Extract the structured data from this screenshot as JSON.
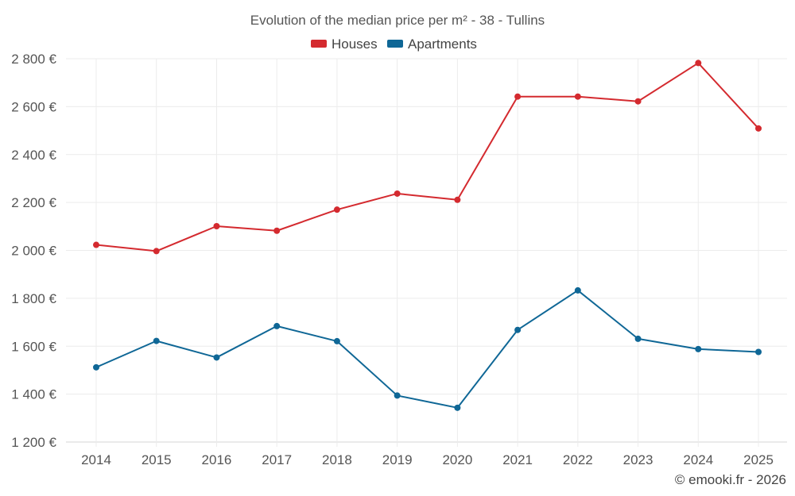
{
  "chart_data": {
    "type": "line",
    "title": "Evolution of the median price per m² - 38 - Tullins",
    "categories": [
      "2014",
      "2015",
      "2016",
      "2017",
      "2018",
      "2019",
      "2020",
      "2021",
      "2022",
      "2023",
      "2024",
      "2025"
    ],
    "series": [
      {
        "name": "Houses",
        "color": "#d42a2f",
        "values": [
          2023,
          1997,
          2101,
          2082,
          2170,
          2237,
          2211,
          2642,
          2642,
          2622,
          2782,
          2509
        ]
      },
      {
        "name": "Apartments",
        "color": "#0f6796",
        "values": [
          1512,
          1622,
          1553,
          1684,
          1621,
          1394,
          1343,
          1668,
          1833,
          1631,
          1588,
          1576
        ]
      }
    ],
    "yticks": [
      1200,
      1400,
      1600,
      1800,
      2000,
      2200,
      2400,
      2600,
      2800
    ],
    "ytick_labels": [
      "1 200 €",
      "1 400 €",
      "1 600 €",
      "1 800 €",
      "2 000 €",
      "2 200 €",
      "2 400 €",
      "2 600 €",
      "2 800 €"
    ],
    "ylim": [
      1200,
      2800
    ],
    "xlabel": "",
    "ylabel": "",
    "grid": true,
    "legend_position": "top-center"
  },
  "credit": "© emooki.fr - 2026"
}
